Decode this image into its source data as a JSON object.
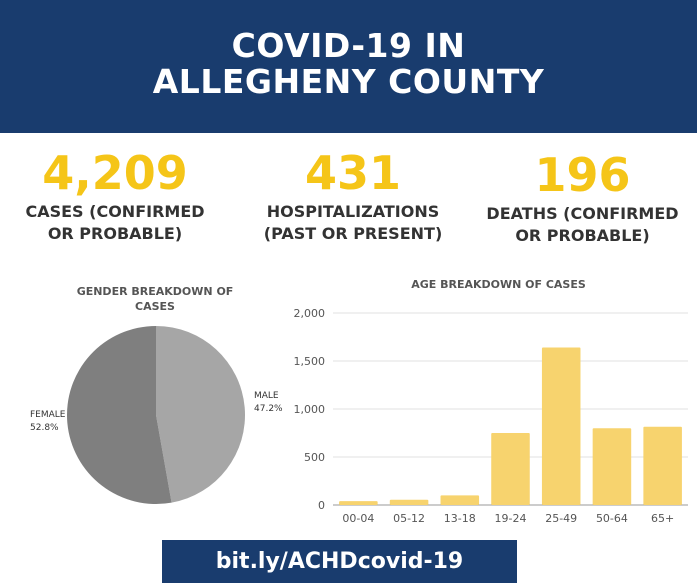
{
  "header": {
    "line1": "COVID-19 IN",
    "line2": "ALLEGHENY COUNTY"
  },
  "stats": {
    "cases": {
      "value": "4,209",
      "label1": "CASES (CONFIRMED",
      "label2": "OR PROBABLE)"
    },
    "hospitalizations": {
      "value": "431",
      "label1": "HOSPITALIZATIONS",
      "label2": "(PAST OR PRESENT)"
    },
    "deaths": {
      "value": "196",
      "label1": "DEATHS (CONFIRMED",
      "label2": "OR PROBABLE)"
    }
  },
  "colors": {
    "navy": "#193c6e",
    "yellow": "#f5c518",
    "bar": "#f7d36e",
    "male": "#a6a6a6",
    "female": "#7f7f7f"
  },
  "chart_data": [
    {
      "type": "pie",
      "title_line1": "GENDER BREAKDOWN OF",
      "title_line2": "CASES",
      "slices": [
        {
          "label": "MALE",
          "value_label": "47.2%",
          "value": 47.2
        },
        {
          "label": "FEMALE",
          "value_label": "52.8%",
          "value": 52.8
        }
      ]
    },
    {
      "type": "bar",
      "title": "AGE BREAKDOWN OF CASES",
      "categories": [
        "00-04",
        "05-12",
        "13-18",
        "19-24",
        "25-49",
        "50-64",
        "65+"
      ],
      "values": [
        40,
        55,
        100,
        750,
        1640,
        800,
        815
      ],
      "ylim": [
        0,
        2000
      ],
      "yticks": [
        "0",
        "500",
        "1,000",
        "1,500",
        "2,000"
      ],
      "ytick_values": [
        0,
        500,
        1000,
        1500,
        2000
      ],
      "grid": true
    }
  ],
  "footer": {
    "link": "bit.ly/ACHDcovid-19"
  }
}
